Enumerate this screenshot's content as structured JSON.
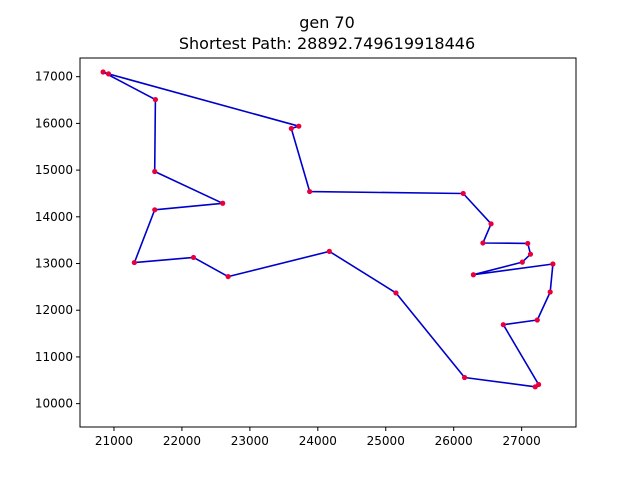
{
  "chart_data": {
    "type": "line",
    "title": "gen 70",
    "subtitle": "Shortest Path: 28892.749619918446",
    "xlabel": "",
    "ylabel": "",
    "xlim": [
      20500,
      27800
    ],
    "ylim": [
      9500,
      17400
    ],
    "xticks": [
      21000,
      22000,
      23000,
      24000,
      25000,
      26000,
      27000
    ],
    "yticks": [
      10000,
      11000,
      12000,
      13000,
      14000,
      15000,
      16000,
      17000
    ],
    "xtick_labels": [
      "21000",
      "22000",
      "23000",
      "24000",
      "25000",
      "26000",
      "27000"
    ],
    "ytick_labels": [
      "10000",
      "11000",
      "12000",
      "13000",
      "14000",
      "15000",
      "16000",
      "17000"
    ],
    "grid": false,
    "line_color": "#0000cc",
    "point_color": "#e8003d",
    "series": [
      {
        "x": [
          20840,
          20920,
          23720,
          23610,
          23880,
          26140,
          26550,
          26430,
          27090,
          27130,
          27010,
          26290,
          27460,
          27420,
          27230,
          26730,
          27250,
          27200,
          26160,
          25150,
          24170,
          22680,
          22170,
          21300,
          21600,
          22600,
          21600,
          21610,
          20840
        ],
        "y": [
          17100,
          17060,
          15940,
          15890,
          14540,
          14500,
          13850,
          13440,
          13430,
          13200,
          13030,
          12760,
          12990,
          12390,
          11790,
          11690,
          10410,
          10360,
          10560,
          12370,
          13260,
          12720,
          13130,
          13020,
          14150,
          14290,
          14970,
          16510,
          17100
        ]
      }
    ]
  }
}
